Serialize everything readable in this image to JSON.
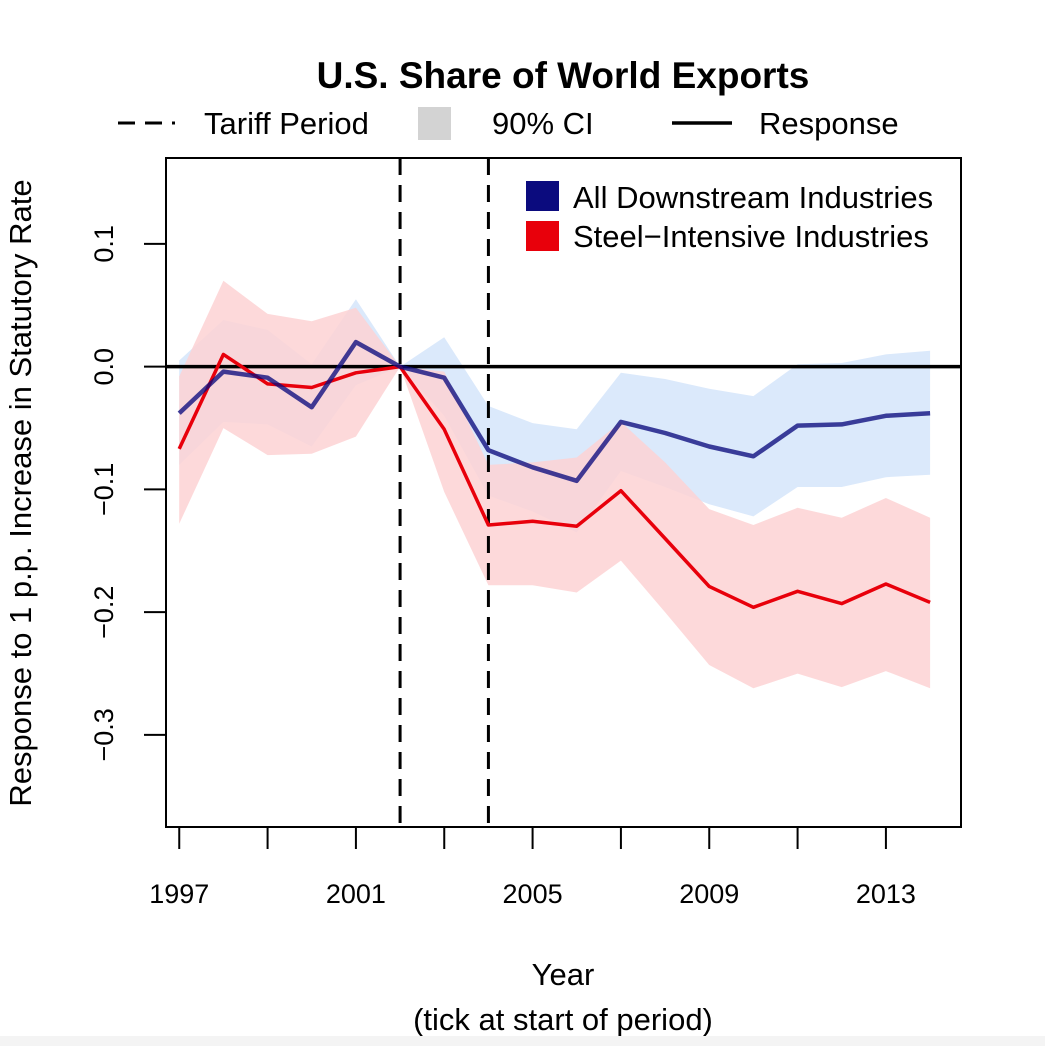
{
  "chart_data": {
    "type": "line",
    "title": "U.S. Share of World Exports",
    "xlabel": "Year",
    "xlabel_note": "(tick at start of period)",
    "ylabel": "Response to 1 p.p. Increase in Statutory Rate",
    "xlim": [
      1996.7,
      2014.7
    ],
    "ylim": [
      -0.375,
      0.17
    ],
    "x_major_ticks": [
      1997,
      2001,
      2005,
      2009,
      2013
    ],
    "x_ticks": [
      1997,
      1999,
      2001,
      2003,
      2005,
      2007,
      2009,
      2011,
      2013
    ],
    "y_ticks": [
      0.1,
      0.0,
      -0.1,
      -0.2,
      -0.3
    ],
    "y_tick_labels": [
      "0.1",
      "0.0",
      "−0.1",
      "−0.2",
      "−0.3"
    ],
    "tariff_period": [
      2002,
      2004
    ],
    "top_legend": [
      {
        "key": "dashed",
        "label": "Tariff Period"
      },
      {
        "key": "ci",
        "label": "90% CI"
      },
      {
        "key": "solid",
        "label": "Response"
      }
    ],
    "series": [
      {
        "name": "All Downstream Industries",
        "color": "#0b0b7e",
        "band_color": "#dbe9fb",
        "x": [
          1997,
          1998,
          1999,
          2000,
          2001,
          2002,
          2003,
          2004,
          2005,
          2006,
          2007,
          2008,
          2009,
          2010,
          2011,
          2012,
          2013,
          2014
        ],
        "values": [
          -0.038,
          -0.004,
          -0.009,
          -0.033,
          0.02,
          0.0,
          -0.009,
          -0.068,
          -0.082,
          -0.093,
          -0.045,
          -0.054,
          -0.065,
          -0.073,
          -0.048,
          -0.047,
          -0.04,
          -0.038
        ],
        "lower": [
          -0.08,
          -0.045,
          -0.047,
          -0.065,
          -0.015,
          0.0,
          -0.04,
          -0.105,
          -0.118,
          -0.135,
          -0.085,
          -0.098,
          -0.112,
          -0.122,
          -0.098,
          -0.098,
          -0.09,
          -0.088
        ],
        "upper": [
          0.005,
          0.038,
          0.03,
          0.002,
          0.055,
          0.0,
          0.024,
          -0.032,
          -0.046,
          -0.051,
          -0.005,
          -0.01,
          -0.018,
          -0.024,
          0.002,
          0.003,
          0.01,
          0.013
        ]
      },
      {
        "name": "Steel−Intensive Industries",
        "color": "#e8000b",
        "band_color": "#fdd2d3",
        "x": [
          1997,
          1998,
          1999,
          2000,
          2001,
          2002,
          2003,
          2004,
          2005,
          2006,
          2007,
          2008,
          2009,
          2010,
          2011,
          2012,
          2013,
          2014
        ],
        "values": [
          -0.067,
          0.01,
          -0.014,
          -0.017,
          -0.005,
          0.0,
          -0.051,
          -0.129,
          -0.126,
          -0.13,
          -0.101,
          -0.14,
          -0.179,
          -0.196,
          -0.183,
          -0.193,
          -0.177,
          -0.192
        ],
        "lower": [
          -0.128,
          -0.05,
          -0.072,
          -0.071,
          -0.057,
          0.0,
          -0.102,
          -0.178,
          -0.178,
          -0.184,
          -0.158,
          -0.2,
          -0.243,
          -0.262,
          -0.25,
          -0.261,
          -0.248,
          -0.262
        ],
        "upper": [
          -0.008,
          0.07,
          0.043,
          0.037,
          0.048,
          0.0,
          -0.004,
          -0.08,
          -0.078,
          -0.074,
          -0.045,
          -0.078,
          -0.116,
          -0.129,
          -0.115,
          -0.123,
          -0.107,
          -0.123
        ]
      }
    ]
  }
}
